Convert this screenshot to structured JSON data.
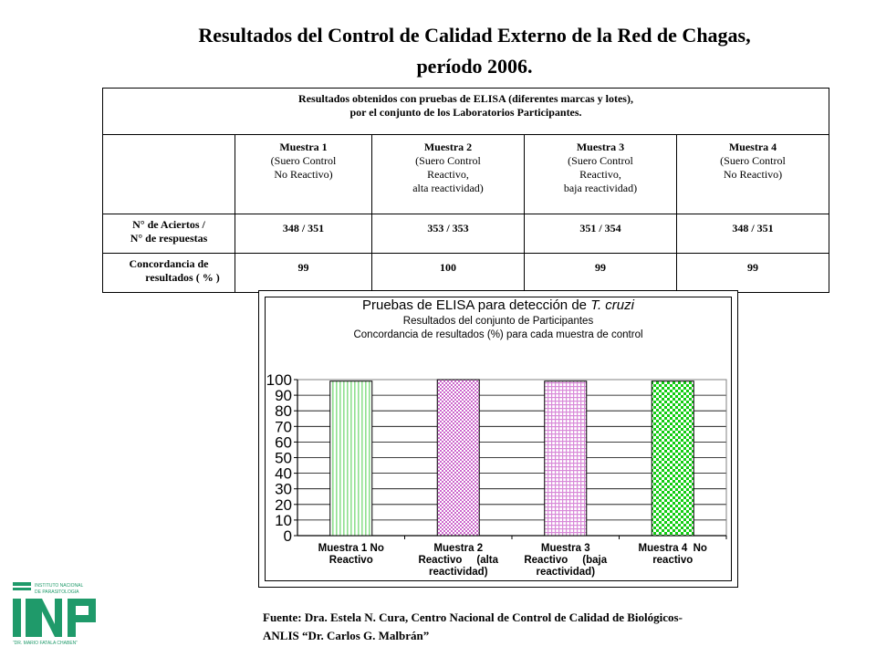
{
  "title": {
    "line1": "Resultados del Control de Calidad Externo de la Red de Chagas,",
    "line2": "período 2006."
  },
  "table": {
    "caption_line1": "Resultados obtenidos con pruebas de ELISA (diferentes marcas y lotes),",
    "caption_line2": "por el conjunto de los Laboratorios Participantes.",
    "columns": [
      {
        "name": "Muestra 1",
        "desc": [
          "(Suero Control",
          "No Reactivo)"
        ]
      },
      {
        "name": "Muestra 2",
        "desc": [
          "(Suero Control",
          "Reactivo,",
          "alta reactividad)"
        ]
      },
      {
        "name": "Muestra 3",
        "desc": [
          "(Suero Control",
          "Reactivo,",
          "baja reactividad)"
        ]
      },
      {
        "name": "Muestra 4",
        "desc": [
          "(Suero Control",
          "No Reactivo)"
        ]
      }
    ],
    "rows": [
      {
        "label": [
          "N° de Aciertos /",
          "N° de respuestas"
        ],
        "values": [
          "348 / 351",
          "353 / 353",
          "351 / 354",
          "348 / 351"
        ]
      },
      {
        "label": [
          "Concordancia de",
          "resultados ( % )"
        ],
        "values": [
          "99",
          "100",
          "99",
          "99"
        ]
      }
    ]
  },
  "chart_data": {
    "type": "bar",
    "title_prefix": "Pruebas de ELISA para detección de ",
    "title_italic": "T. cruzi",
    "subtitle1": "Resultados del conjunto de Participantes",
    "subtitle2": "Concordancia de resultados (%) para cada muestra de control",
    "categories": [
      [
        "Muestra 1 No",
        "Reactivo"
      ],
      [
        "Muestra 2",
        "Reactivo     (alta",
        "reactividad)"
      ],
      [
        "Muestra 3",
        "Reactivo     (baja",
        "reactividad)"
      ],
      [
        "Muestra 4  No",
        "reactivo"
      ]
    ],
    "values": [
      99,
      100,
      99,
      99
    ],
    "ylim": [
      0,
      100
    ],
    "yticks": [
      0,
      10,
      20,
      30,
      40,
      50,
      60,
      70,
      80,
      90,
      100
    ],
    "grid": true,
    "colors": [
      "#8fe08f",
      "#cc66cc",
      "#d98ad9",
      "#11cc11"
    ]
  },
  "source": {
    "line1": "Fuente: Dra. Estela N. Cura, Centro Nacional de Control de Calidad de Biológicos-",
    "line2": "ANLIS “Dr. Carlos G. Malbrán”"
  },
  "logo": {
    "text1": "INSTITUTO NACIONAL",
    "text2": "DE PARASITOLOGIA",
    "text3": "“DR. MARIO FATALA CHABEN”",
    "color": "#1f9a6a"
  }
}
